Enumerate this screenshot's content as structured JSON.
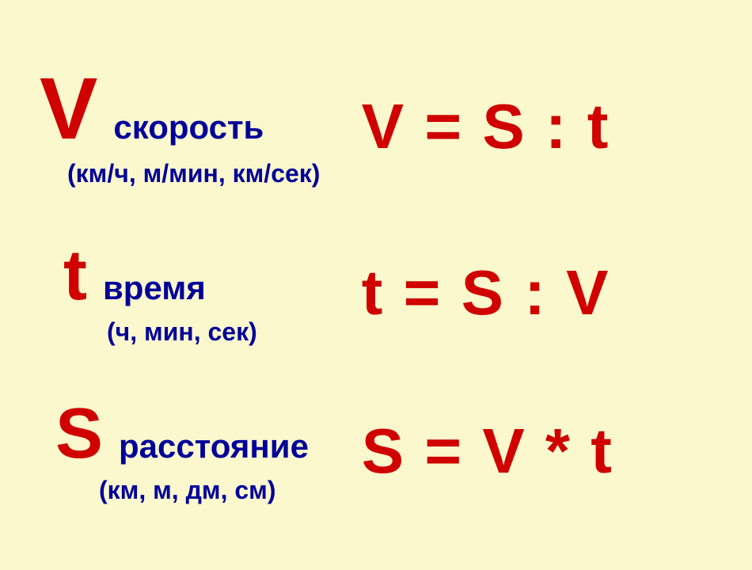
{
  "background_color": "#faf8cc",
  "symbol_color": "#d00000",
  "formula_color": "#d00000",
  "label_color": "#000099",
  "units_color": "#000099",
  "symbol_fontsize": 110,
  "label_fontsize": 42,
  "units_fontsize": 32,
  "formula_fontsize": 80,
  "rows": [
    {
      "symbol": "V",
      "label": "скорость",
      "units": "(км/ч, м/мин, км/сек)",
      "formula": "V = S : t"
    },
    {
      "symbol": "t",
      "label": "время",
      "units": "(ч, мин, сек)",
      "formula": "t = S : V"
    },
    {
      "symbol": "S",
      "label": "расстояние",
      "units": "(км, м, дм, см)",
      "formula": "S = V * t"
    }
  ]
}
